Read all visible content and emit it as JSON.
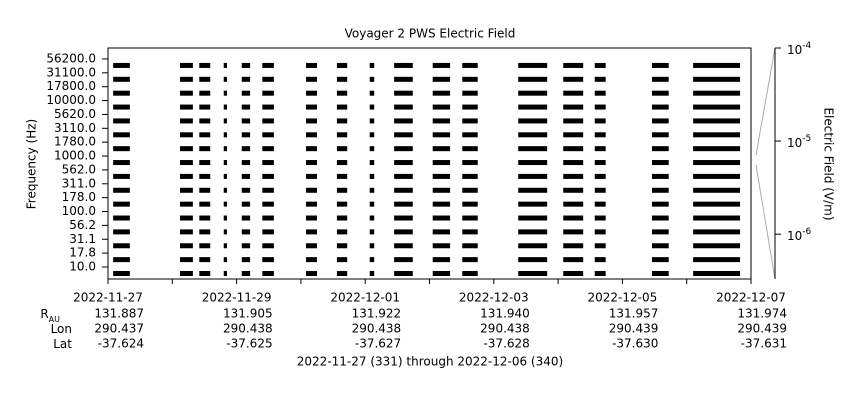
{
  "chart_data": {
    "type": "segments",
    "title": "Voyager 2 PWS Electric Field",
    "y_label": "Frequency (Hz)",
    "categories": [
      "10.0",
      "17.8",
      "31.1",
      "56.2",
      "100.0",
      "178.0",
      "311.0",
      "562.0",
      "1000.0",
      "1780.0",
      "3110.0",
      "5620.0",
      "10000.0",
      "17800.0",
      "31100.0",
      "56200.0"
    ],
    "color": "#000000",
    "xlim": [
      0,
      10
    ],
    "xticks": [
      {
        "value": 0,
        "label": "2022-11-27"
      },
      1,
      {
        "value": 2,
        "label": "2022-11-29"
      },
      3,
      {
        "value": 4,
        "label": "2022-12-01"
      },
      5,
      {
        "value": 6,
        "label": "2022-12-03"
      },
      7,
      {
        "value": 8,
        "label": "2022-12-05"
      },
      9,
      {
        "value": 10,
        "label": "2022-12-07"
      }
    ],
    "segments": [
      {
        "start": 0.08,
        "end": 0.34
      },
      {
        "start": 1.12,
        "end": 1.32
      },
      {
        "start": 1.42,
        "end": 1.59
      },
      {
        "start": 1.8,
        "end": 1.85
      },
      {
        "start": 2.08,
        "end": 2.21
      },
      {
        "start": 2.4,
        "end": 2.58
      },
      {
        "start": 3.08,
        "end": 3.25
      },
      {
        "start": 3.56,
        "end": 3.72
      },
      {
        "start": 4.07,
        "end": 4.14
      },
      {
        "start": 4.45,
        "end": 4.74
      },
      {
        "start": 5.05,
        "end": 5.32
      },
      {
        "start": 5.51,
        "end": 5.75
      },
      {
        "start": 6.38,
        "end": 6.83
      },
      {
        "start": 7.08,
        "end": 7.39
      },
      {
        "start": 7.57,
        "end": 7.74
      },
      {
        "start": 8.46,
        "end": 8.72
      },
      {
        "start": 9.1,
        "end": 9.83
      }
    ],
    "ephemeris": [
      {
        "label": "R",
        "subscript": "AU",
        "values": [
          "131.887",
          "131.905",
          "131.922",
          "131.940",
          "131.957",
          "131.974"
        ]
      },
      {
        "label": "Lon",
        "values": [
          "290.437",
          "290.438",
          "290.438",
          "290.438",
          "290.439",
          "290.439"
        ]
      },
      {
        "label": "Lat",
        "values": [
          "-37.624",
          "-37.625",
          "-37.627",
          "-37.628",
          "-37.630",
          "-37.631"
        ]
      }
    ],
    "x_label": "2022-11-27 (331) through 2022-12-06 (340)",
    "colorbar": {
      "label": "Electric Field (V/m)",
      "log_scale": true,
      "ylim": [
        3.3e-07,
        0.0001
      ],
      "yticks": [
        {
          "value": 1e-06,
          "label": "10",
          "exponent": "-6"
        },
        {
          "value": 1e-05,
          "label": "10",
          "exponent": "-5"
        },
        {
          "value": 0.0001,
          "label": "10",
          "exponent": "-4"
        }
      ]
    }
  }
}
